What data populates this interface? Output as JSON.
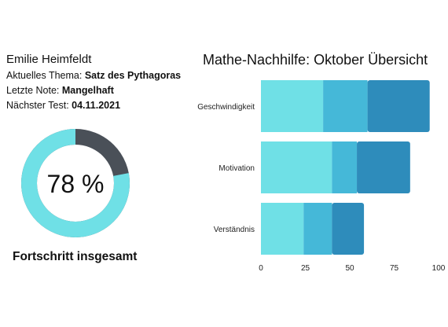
{
  "student": {
    "name": "Emilie Heimfeldt",
    "topic_label": "Aktuelles Thema:",
    "topic_value": "Satz des Pythagoras",
    "grade_label": "Letzte Note:",
    "grade_value": "Mangelhaft",
    "test_label": "Nächster Test:",
    "test_value": "04.11.2021"
  },
  "progress": {
    "value_text": "78 %",
    "fraction": 0.78,
    "caption": "Fortschritt insgesamt",
    "colors": {
      "filled": "#6fe0e6",
      "remaining": "#4a5058"
    }
  },
  "chart_data": {
    "type": "bar",
    "orientation": "horizontal",
    "stacked": true,
    "title": "Mathe-Nachhilfe: Oktober Übersicht",
    "categories": [
      "Geschwindigkeit",
      "Motivation",
      "Verständnis"
    ],
    "series": [
      {
        "values": [
          35,
          40,
          24
        ],
        "color": "#6fe0e6"
      },
      {
        "values": [
          25,
          14,
          16
        ],
        "color": "#45b8d8"
      },
      {
        "values": [
          35,
          30,
          18
        ],
        "color": "#2e8cbb"
      }
    ],
    "xlim": [
      0,
      100
    ],
    "xticks": [
      "0",
      "25",
      "50",
      "75",
      "100"
    ],
    "grid": false,
    "legend": "none"
  }
}
